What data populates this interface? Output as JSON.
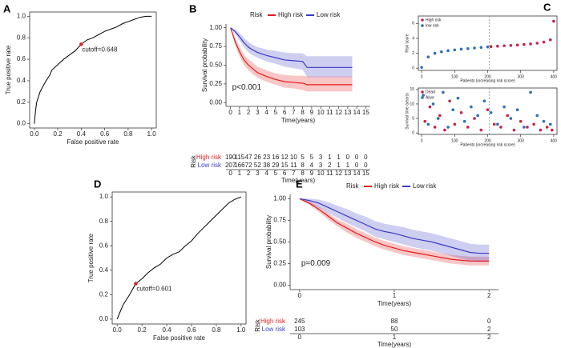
{
  "chart_data": [
    {
      "type": "line",
      "panel": "A",
      "xlabel": "False positive rate",
      "ylabel": "True positive rate",
      "color": "#000000",
      "x": [
        0,
        0.01,
        0.02,
        0.05,
        0.08,
        0.1,
        0.13,
        0.15,
        0.2,
        0.25,
        0.3,
        0.35,
        0.4,
        0.45,
        0.5,
        0.55,
        0.6,
        0.65,
        0.7,
        0.75,
        0.8,
        0.85,
        0.9,
        0.95,
        1.0
      ],
      "values": [
        0,
        0.12,
        0.2,
        0.3,
        0.36,
        0.4,
        0.45,
        0.5,
        0.55,
        0.6,
        0.64,
        0.68,
        0.74,
        0.78,
        0.8,
        0.83,
        0.86,
        0.88,
        0.9,
        0.93,
        0.95,
        0.97,
        0.99,
        1.0,
        1.0
      ],
      "annotation": {
        "text": "cutoff=0.648",
        "x": 0.4,
        "y": 0.74,
        "color": "#e41a1c"
      },
      "xlim": [
        -0.04,
        1.04
      ],
      "ylim": [
        -0.04,
        1.04
      ],
      "xticks": [
        {
          "value": 0,
          "label": "0.0"
        },
        {
          "value": 0.2,
          "label": "0.2"
        },
        {
          "value": 0.4,
          "label": "0.4"
        },
        {
          "value": 0.6,
          "label": "0.6"
        },
        {
          "value": 0.8,
          "label": "0.8"
        },
        {
          "value": 1,
          "label": "1.0"
        }
      ],
      "yticks": [
        {
          "value": 0,
          "label": "0.0"
        },
        {
          "value": 0.2,
          "label": "0.2"
        },
        {
          "value": 0.4,
          "label": "0.4"
        },
        {
          "value": 0.6,
          "label": "0.6"
        },
        {
          "value": 0.8,
          "label": "0.8"
        },
        {
          "value": 1,
          "label": "1.0"
        }
      ]
    },
    {
      "type": "survival",
      "panel": "B",
      "xlabel": "Time(years)",
      "ylabel": "Survival probability",
      "legend_title": "Risk",
      "table_title": "Risk",
      "table_xlabel": "Time(years)",
      "annotation": {
        "text": "p<0.001",
        "x": 0,
        "y": 0.2
      },
      "x": [
        0,
        0.5,
        1,
        1.5,
        2,
        2.5,
        3,
        4,
        5,
        6,
        7,
        8,
        8.5,
        9,
        10,
        11,
        12,
        13,
        13.5
      ],
      "series": [
        {
          "name": "High risk",
          "color": "#e41a1c",
          "values": [
            1,
            0.82,
            0.68,
            0.57,
            0.5,
            0.45,
            0.4,
            0.35,
            0.31,
            0.28,
            0.27,
            0.26,
            0.24,
            0.24,
            0.24,
            0.24,
            0.24,
            0.24,
            0.24
          ],
          "lower": [
            1,
            0.77,
            0.62,
            0.5,
            0.43,
            0.38,
            0.33,
            0.28,
            0.24,
            0.2,
            0.19,
            0.17,
            0.15,
            0.15,
            0.15,
            0.15,
            0.15,
            0.15,
            0.15
          ],
          "upper": [
            1,
            0.87,
            0.75,
            0.64,
            0.58,
            0.53,
            0.48,
            0.43,
            0.39,
            0.37,
            0.36,
            0.36,
            0.35,
            0.35,
            0.35,
            0.35,
            0.35,
            0.35,
            0.35
          ],
          "at_risk": [
            190,
            115,
            47,
            26,
            23,
            16,
            12,
            10,
            5,
            5,
            3,
            1,
            1,
            0,
            0,
            0
          ]
        },
        {
          "name": "Low risk",
          "color": "#3b3bc4",
          "values": [
            1,
            0.95,
            0.88,
            0.8,
            0.74,
            0.7,
            0.67,
            0.63,
            0.6,
            0.57,
            0.56,
            0.55,
            0.47,
            0.47,
            0.47,
            0.47,
            0.47,
            0.47,
            0.47
          ],
          "lower": [
            1,
            0.92,
            0.83,
            0.74,
            0.67,
            0.63,
            0.6,
            0.55,
            0.52,
            0.48,
            0.46,
            0.44,
            0.34,
            0.34,
            0.34,
            0.34,
            0.34,
            0.34,
            0.34
          ],
          "upper": [
            1,
            0.98,
            0.93,
            0.86,
            0.81,
            0.77,
            0.74,
            0.71,
            0.69,
            0.67,
            0.66,
            0.66,
            0.62,
            0.62,
            0.62,
            0.62,
            0.62,
            0.62,
            0.62
          ],
          "at_risk": [
            207,
            166,
            72,
            52,
            38,
            29,
            15,
            11,
            8,
            4,
            3,
            2,
            1,
            1,
            0,
            0
          ]
        }
      ],
      "xlim": [
        -0.5,
        15.5
      ],
      "ylim": [
        -0.05,
        1.05
      ],
      "xticks": [
        0,
        1,
        2,
        3,
        4,
        5,
        6,
        7,
        8,
        9,
        10,
        11,
        12,
        13,
        14,
        15
      ],
      "yticks": [
        {
          "value": 0,
          "label": "0.00"
        },
        {
          "value": 0.25,
          "label": "0.25"
        },
        {
          "value": 0.5,
          "label": "0.50"
        },
        {
          "value": 0.75,
          "label": "0.75"
        },
        {
          "value": 1,
          "label": "1.00"
        }
      ]
    },
    {
      "type": "scatter",
      "panel": "C",
      "xlabel": "Patients (increasing risk score)",
      "ylabel": "Risk score",
      "divider": 205,
      "series": [
        {
          "name": "High risk",
          "color": "#c8234a",
          "x": [
            210,
            230,
            250,
            270,
            290,
            310,
            330,
            350,
            370,
            390,
            400
          ],
          "values": [
            2.9,
            2.95,
            3.0,
            3.05,
            3.1,
            3.18,
            3.25,
            3.35,
            3.5,
            3.8,
            6.3
          ]
        },
        {
          "name": "low risk",
          "color": "#2f6fb7",
          "x": [
            0,
            20,
            40,
            60,
            80,
            100,
            120,
            140,
            160,
            180,
            200
          ],
          "values": [
            0.1,
            1.5,
            2.0,
            2.2,
            2.35,
            2.45,
            2.55,
            2.62,
            2.7,
            2.78,
            2.85
          ]
        }
      ],
      "xlim": [
        -10,
        410
      ],
      "ylim": [
        -0.3,
        7
      ],
      "xticks": [
        0,
        100,
        200,
        300,
        400
      ],
      "yticks": [
        0,
        2,
        4,
        6
      ]
    },
    {
      "type": "scatter",
      "xlabel": "Patients (increasing risk score)",
      "ylabel": "Survival time (years)",
      "divider": 205,
      "series": [
        {
          "name": "Dead",
          "color": "#c8234a",
          "x": [
            10,
            25,
            40,
            55,
            70,
            85,
            100,
            120,
            140,
            160,
            180,
            200,
            220,
            240,
            260,
            280,
            300,
            320,
            340,
            360,
            380,
            395
          ],
          "values": [
            4,
            9,
            2,
            6,
            1,
            11,
            3,
            7,
            2,
            5,
            1,
            8,
            3,
            2,
            6,
            1,
            4,
            2,
            3,
            1,
            2,
            1
          ]
        },
        {
          "name": "Alive",
          "color": "#2f6fb7",
          "x": [
            5,
            20,
            35,
            50,
            65,
            80,
            95,
            110,
            130,
            150,
            170,
            190,
            210,
            230,
            250,
            270,
            290,
            310,
            330,
            350,
            370,
            390
          ],
          "values": [
            13,
            3,
            10,
            5,
            14,
            2,
            8,
            12,
            4,
            9,
            6,
            11,
            7,
            3,
            9,
            5,
            8,
            2,
            14,
            6,
            4,
            3
          ]
        }
      ],
      "xlim": [
        -10,
        410
      ],
      "ylim": [
        -0.5,
        15.5
      ],
      "xticks": [
        0,
        100,
        200,
        300,
        400
      ],
      "yticks": [
        0,
        5,
        10,
        15
      ]
    },
    {
      "type": "line",
      "panel": "D",
      "xlabel": "False positive rate",
      "ylabel": "True positive rate",
      "color": "#000000",
      "x": [
        0,
        0.02,
        0.05,
        0.1,
        0.15,
        0.2,
        0.25,
        0.3,
        0.35,
        0.4,
        0.45,
        0.5,
        0.55,
        0.6,
        0.65,
        0.7,
        0.75,
        0.8,
        0.85,
        0.9,
        0.95,
        1.0
      ],
      "values": [
        0,
        0.05,
        0.12,
        0.2,
        0.29,
        0.33,
        0.38,
        0.42,
        0.45,
        0.5,
        0.53,
        0.55,
        0.6,
        0.64,
        0.7,
        0.75,
        0.8,
        0.85,
        0.9,
        0.95,
        0.98,
        1.0
      ],
      "annotation": {
        "text": "cutoff=0.601",
        "x": 0.15,
        "y": 0.29,
        "color": "#e41a1c"
      },
      "xlim": [
        -0.04,
        1.04
      ],
      "ylim": [
        -0.04,
        1.04
      ],
      "xticks": [
        {
          "value": 0,
          "label": "0.0"
        },
        {
          "value": 0.2,
          "label": "0.2"
        },
        {
          "value": 0.4,
          "label": "0.4"
        },
        {
          "value": 0.6,
          "label": "0.6"
        },
        {
          "value": 0.8,
          "label": "0.8"
        },
        {
          "value": 1,
          "label": "1.0"
        }
      ],
      "yticks": [
        {
          "value": 0,
          "label": "0.0"
        },
        {
          "value": 0.2,
          "label": "0.2"
        },
        {
          "value": 0.4,
          "label": "0.4"
        },
        {
          "value": 0.6,
          "label": "0.6"
        },
        {
          "value": 0.8,
          "label": "0.8"
        },
        {
          "value": 1,
          "label": "1.0"
        }
      ]
    },
    {
      "type": "survival",
      "panel": "E",
      "xlabel": "Time(years)",
      "ylabel": "Survival probability",
      "legend_title": "Risk",
      "table_title": "Risk",
      "table_xlabel": "Time(years)",
      "annotation": {
        "text": "p=0.009",
        "x": 0,
        "y": 0.25
      },
      "x": [
        0,
        0.1,
        0.2,
        0.3,
        0.4,
        0.5,
        0.6,
        0.7,
        0.8,
        0.9,
        1.0,
        1.1,
        1.2,
        1.3,
        1.4,
        1.5,
        1.6,
        1.7,
        1.8,
        1.9,
        2.0
      ],
      "series": [
        {
          "name": "High risk",
          "color": "#e41a1c",
          "values": [
            1,
            0.95,
            0.88,
            0.8,
            0.72,
            0.66,
            0.6,
            0.55,
            0.5,
            0.46,
            0.43,
            0.4,
            0.38,
            0.36,
            0.34,
            0.32,
            0.3,
            0.29,
            0.28,
            0.28,
            0.28
          ],
          "lower": [
            1,
            0.93,
            0.85,
            0.76,
            0.68,
            0.61,
            0.55,
            0.5,
            0.45,
            0.41,
            0.38,
            0.35,
            0.33,
            0.31,
            0.29,
            0.27,
            0.25,
            0.24,
            0.23,
            0.23,
            0.23
          ],
          "upper": [
            1,
            0.97,
            0.91,
            0.84,
            0.76,
            0.71,
            0.65,
            0.6,
            0.55,
            0.51,
            0.48,
            0.45,
            0.43,
            0.41,
            0.39,
            0.37,
            0.35,
            0.34,
            0.33,
            0.33,
            0.33
          ],
          "at_risk": [
            245,
            88,
            0
          ]
        },
        {
          "name": "Low risk",
          "color": "#3b3bc4",
          "values": [
            1,
            0.98,
            0.95,
            0.9,
            0.85,
            0.8,
            0.75,
            0.7,
            0.65,
            0.62,
            0.6,
            0.57,
            0.54,
            0.52,
            0.5,
            0.47,
            0.44,
            0.41,
            0.38,
            0.37,
            0.37
          ],
          "lower": [
            1,
            0.95,
            0.9,
            0.84,
            0.78,
            0.72,
            0.67,
            0.62,
            0.56,
            0.53,
            0.5,
            0.47,
            0.44,
            0.42,
            0.4,
            0.37,
            0.34,
            0.31,
            0.28,
            0.27,
            0.27
          ],
          "upper": [
            1,
            1,
            0.99,
            0.96,
            0.92,
            0.88,
            0.83,
            0.79,
            0.74,
            0.71,
            0.69,
            0.67,
            0.64,
            0.62,
            0.6,
            0.57,
            0.54,
            0.51,
            0.48,
            0.47,
            0.47
          ],
          "at_risk": [
            103,
            50,
            2
          ]
        }
      ],
      "xlim": [
        -0.1,
        2.1
      ],
      "ylim": [
        -0.05,
        1.05
      ],
      "xticks": [
        0,
        1,
        2
      ],
      "yticks": [
        {
          "value": 0,
          "label": "0.00"
        },
        {
          "value": 0.25,
          "label": "0.25"
        },
        {
          "value": 0.5,
          "label": "0.50"
        },
        {
          "value": 0.75,
          "label": "0.75"
        },
        {
          "value": 1,
          "label": "1.00"
        }
      ]
    }
  ]
}
